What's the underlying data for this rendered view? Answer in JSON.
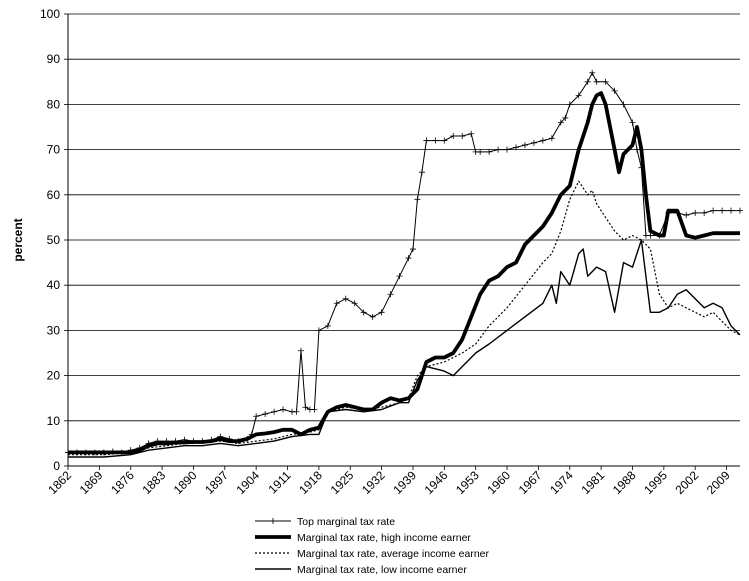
{
  "chart_data": {
    "type": "line",
    "title": "",
    "xlabel": "",
    "ylabel": "percent",
    "xlim": [
      1862,
      2012
    ],
    "ylim": [
      0,
      100
    ],
    "yticks": [
      0,
      10,
      20,
      30,
      40,
      50,
      60,
      70,
      80,
      90,
      100
    ],
    "xticks": [
      1862,
      1869,
      1876,
      1883,
      1890,
      1897,
      1904,
      1911,
      1918,
      1925,
      1932,
      1939,
      1946,
      1953,
      1960,
      1967,
      1974,
      1981,
      1988,
      1995,
      2002,
      2009
    ],
    "grid": "horizontal",
    "legend_position": "bottom",
    "series": [
      {
        "name": "Top marginal tax rate",
        "style": "thin-cross",
        "x": [
          1862,
          1864,
          1866,
          1868,
          1870,
          1872,
          1874,
          1876,
          1878,
          1880,
          1882,
          1884,
          1886,
          1888,
          1890,
          1892,
          1894,
          1896,
          1898,
          1900,
          1902,
          1903,
          1904,
          1906,
          1908,
          1910,
          1912,
          1913,
          1914,
          1915,
          1916,
          1917,
          1918,
          1920,
          1922,
          1924,
          1926,
          1928,
          1930,
          1932,
          1934,
          1936,
          1938,
          1939,
          1940,
          1941,
          1942,
          1944,
          1946,
          1948,
          1950,
          1952,
          1953,
          1954,
          1956,
          1958,
          1960,
          1962,
          1964,
          1966,
          1968,
          1970,
          1972,
          1973,
          1974,
          1976,
          1978,
          1979,
          1980,
          1982,
          1984,
          1986,
          1988,
          1989,
          1990,
          1991,
          1992,
          1994,
          1996,
          1998,
          2000,
          2002,
          2004,
          2006,
          2008,
          2010,
          2012
        ],
        "y": [
          3,
          3,
          3,
          3,
          3,
          3.2,
          3,
          3.5,
          4,
          5,
          5.5,
          5.5,
          5.5,
          5.8,
          5.5,
          5.5,
          5.8,
          6.5,
          6,
          5.5,
          6,
          7,
          11,
          11.5,
          12,
          12.5,
          12,
          12,
          25.5,
          13,
          12.5,
          12.5,
          30,
          31,
          36,
          37,
          36,
          34,
          33,
          34,
          38,
          42,
          46,
          48,
          59,
          65,
          72,
          72,
          72,
          73,
          73,
          73.5,
          69.5,
          69.5,
          69.5,
          70,
          70,
          70.5,
          71,
          71.5,
          72,
          72.5,
          76,
          77,
          80,
          82,
          85,
          87,
          85,
          85,
          83,
          80,
          76,
          70,
          66,
          51,
          51,
          51,
          56,
          56,
          55.5,
          56,
          56,
          56.5,
          56.5,
          56.5,
          56.5
        ]
      },
      {
        "name": "Marginal tax rate, high income earner",
        "style": "thick",
        "x": [
          1862,
          1866,
          1870,
          1874,
          1876,
          1878,
          1880,
          1882,
          1884,
          1886,
          1888,
          1890,
          1892,
          1894,
          1896,
          1898,
          1900,
          1902,
          1904,
          1906,
          1908,
          1910,
          1912,
          1914,
          1916,
          1918,
          1920,
          1922,
          1924,
          1926,
          1928,
          1930,
          1932,
          1934,
          1936,
          1938,
          1939,
          1940,
          1942,
          1944,
          1946,
          1948,
          1950,
          1952,
          1954,
          1956,
          1958,
          1960,
          1962,
          1964,
          1966,
          1968,
          1970,
          1972,
          1974,
          1976,
          1978,
          1979,
          1980,
          1981,
          1982,
          1984,
          1985,
          1986,
          1988,
          1989,
          1990,
          1991,
          1992,
          1994,
          1995,
          1996,
          1998,
          2000,
          2002,
          2004,
          2006,
          2008,
          2010,
          2012
        ],
        "y": [
          3,
          3,
          3,
          3,
          3,
          3.5,
          4.5,
          5,
          5,
          5.2,
          5.2,
          5.3,
          5.3,
          5.5,
          6,
          5.5,
          5.5,
          6,
          7,
          7.2,
          7.5,
          8,
          8,
          7,
          8,
          8.5,
          12,
          13,
          13.5,
          13,
          12.5,
          12.5,
          14,
          15,
          14.5,
          15,
          16,
          17,
          23,
          24,
          24,
          25,
          28,
          33,
          38,
          41,
          42,
          44,
          45,
          49,
          51,
          53,
          56,
          60,
          62,
          70,
          76,
          80,
          82,
          82.5,
          80,
          70,
          65,
          69,
          71,
          75,
          70,
          60,
          52,
          51,
          51,
          56.5,
          56.5,
          51,
          50.5,
          51,
          51.5,
          51.5,
          51.5,
          51.5
        ]
      },
      {
        "name": "Marginal tax rate, average income earner",
        "style": "dotted",
        "x": [
          1862,
          1870,
          1876,
          1880,
          1884,
          1888,
          1892,
          1896,
          1900,
          1904,
          1908,
          1912,
          1916,
          1918,
          1920,
          1924,
          1928,
          1932,
          1936,
          1938,
          1940,
          1942,
          1946,
          1950,
          1953,
          1956,
          1960,
          1964,
          1968,
          1970,
          1972,
          1974,
          1976,
          1978,
          1979,
          1980,
          1982,
          1984,
          1986,
          1988,
          1990,
          1992,
          1994,
          1996,
          1998,
          2000,
          2002,
          2004,
          2006,
          2008,
          2010,
          2012
        ],
        "y": [
          2.5,
          2.5,
          3,
          4,
          4.5,
          5,
          5.2,
          5.5,
          5,
          5.5,
          6,
          7,
          7.5,
          8,
          12,
          13,
          12.5,
          13,
          14,
          15,
          20,
          22,
          23,
          25,
          27,
          31,
          35,
          40,
          45,
          47,
          52,
          59,
          63,
          60,
          61,
          58,
          55,
          52,
          50,
          51,
          50,
          48,
          38,
          35,
          36,
          35,
          34,
          33,
          34,
          32,
          30,
          29
        ]
      },
      {
        "name": "Marginal tax rate, low income earner",
        "style": "solid",
        "x": [
          1862,
          1870,
          1876,
          1880,
          1884,
          1888,
          1892,
          1896,
          1900,
          1904,
          1908,
          1912,
          1916,
          1918,
          1920,
          1924,
          1928,
          1932,
          1936,
          1938,
          1940,
          1942,
          1946,
          1948,
          1950,
          1953,
          1956,
          1960,
          1964,
          1968,
          1970,
          1971,
          1972,
          1974,
          1976,
          1977,
          1978,
          1980,
          1982,
          1984,
          1986,
          1988,
          1990,
          1992,
          1994,
          1996,
          1998,
          2000,
          2002,
          2004,
          2006,
          2008,
          2010,
          2012
        ],
        "y": [
          2,
          2,
          2.5,
          3.5,
          4,
          4.5,
          4.5,
          5,
          4.5,
          5,
          5.5,
          6.5,
          7,
          7,
          12,
          12.5,
          12,
          12.5,
          14,
          14,
          19,
          22,
          21,
          20,
          22,
          25,
          27,
          30,
          33,
          36,
          40,
          36,
          43,
          40,
          47,
          48,
          42,
          44,
          43,
          34,
          45,
          44,
          50,
          34,
          34,
          35,
          38,
          39,
          37,
          35,
          36,
          35,
          31,
          29
        ]
      }
    ]
  }
}
